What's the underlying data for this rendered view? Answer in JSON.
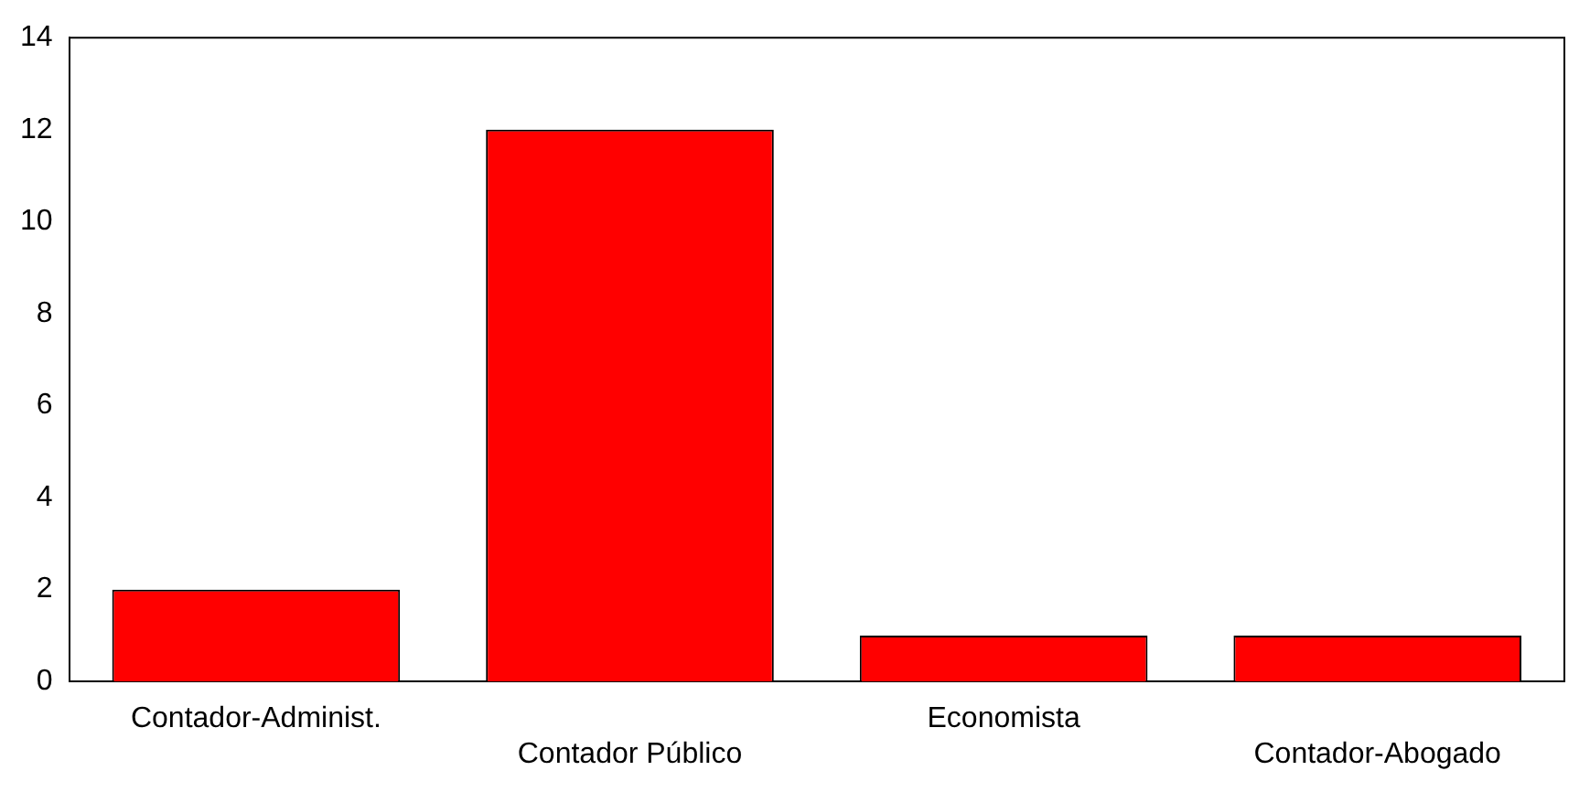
{
  "chart_data": {
    "type": "bar",
    "categories": [
      "Contador-Administ.",
      "Contador Público",
      "Economista",
      "Contador-Abogado"
    ],
    "values": [
      2,
      12,
      1,
      1
    ],
    "color": "#ff0000",
    "ylim": [
      0,
      14
    ],
    "yticks": [
      0,
      2,
      4,
      6,
      8,
      10,
      12,
      14
    ],
    "grid": false,
    "legend": false
  }
}
